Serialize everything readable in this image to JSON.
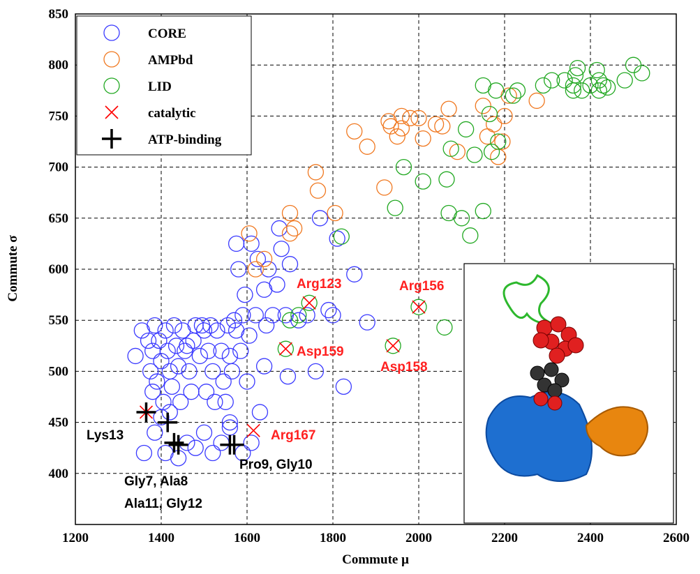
{
  "chart_data": {
    "type": "scatter",
    "xlabel": "Commute μ",
    "ylabel": "Commute σ",
    "xlim": [
      1200,
      2600
    ],
    "ylim": [
      350,
      850
    ],
    "xticks": [
      1200,
      1400,
      1600,
      1800,
      2000,
      2200,
      2400,
      2600
    ],
    "yticks": [
      400,
      450,
      500,
      550,
      600,
      650,
      700,
      750,
      800,
      850
    ],
    "grid": true,
    "legend": "upper left",
    "series": [
      {
        "name": "CORE",
        "color": "#3a3aff",
        "marker": "o",
        "x": [
          1340,
          1355,
          1370,
          1375,
          1380,
          1385,
          1390,
          1395,
          1400,
          1405,
          1410,
          1415,
          1420,
          1425,
          1430,
          1435,
          1440,
          1445,
          1450,
          1455,
          1460,
          1465,
          1470,
          1475,
          1480,
          1490,
          1495,
          1500,
          1505,
          1510,
          1515,
          1520,
          1525,
          1530,
          1540,
          1545,
          1550,
          1555,
          1560,
          1565,
          1570,
          1575,
          1575,
          1580,
          1585,
          1590,
          1595,
          1600,
          1605,
          1610,
          1620,
          1625,
          1630,
          1640,
          1645,
          1650,
          1660,
          1670,
          1675,
          1680,
          1690,
          1695,
          1700,
          1720,
          1740,
          1760,
          1770,
          1790,
          1800,
          1810,
          1825,
          1850,
          1880,
          1360,
          1385,
          1410,
          1440,
          1460,
          1480,
          1500,
          1520,
          1540,
          1560,
          1590,
          1610,
          1380,
          1400,
          1420,
          1640,
          1560
        ],
        "y": [
          515,
          540,
          530,
          500,
          520,
          545,
          490,
          530,
          510,
          470,
          540,
          520,
          500,
          485,
          545,
          525,
          505,
          470,
          540,
          520,
          525,
          500,
          480,
          530,
          545,
          515,
          545,
          540,
          480,
          520,
          545,
          500,
          470,
          540,
          520,
          490,
          470,
          545,
          515,
          500,
          550,
          625,
          540,
          600,
          520,
          555,
          575,
          490,
          535,
          625,
          555,
          610,
          460,
          505,
          545,
          600,
          555,
          585,
          640,
          620,
          555,
          495,
          605,
          550,
          555,
          500,
          650,
          560,
          555,
          630,
          485,
          595,
          548,
          420,
          440,
          420,
          415,
          430,
          425,
          440,
          420,
          430,
          445,
          420,
          430,
          480,
          455,
          460,
          580,
          450
        ]
      },
      {
        "name": "AMPbd",
        "color": "#f07820",
        "marker": "o",
        "x": [
          1605,
          1620,
          1640,
          1700,
          1710,
          1700,
          1760,
          1765,
          1805,
          1850,
          1880,
          1920,
          1935,
          1950,
          1960,
          1980,
          2000,
          2010,
          2040,
          2055,
          2070,
          2090,
          2150,
          2160,
          2175,
          2185,
          2195,
          2200,
          2210,
          2275,
          1930,
          1960
        ],
        "y": [
          635,
          600,
          610,
          635,
          640,
          655,
          695,
          677,
          655,
          735,
          720,
          680,
          740,
          730,
          750,
          748,
          748,
          728,
          742,
          740,
          757,
          715,
          760,
          730,
          742,
          710,
          725,
          750,
          770,
          765,
          745,
          738
        ]
      },
      {
        "name": "LID",
        "color": "#22a822",
        "marker": "o",
        "x": [
          1820,
          1700,
          1720,
          1745,
          1690,
          2000,
          2060,
          1940,
          1945,
          1965,
          2010,
          2065,
          2075,
          2070,
          2100,
          2110,
          2120,
          2130,
          2150,
          2150,
          2165,
          2170,
          2180,
          2185,
          2220,
          2230,
          2290,
          2310,
          2340,
          2360,
          2365,
          2370,
          2380,
          2400,
          2415,
          2420,
          2430,
          2440,
          2480,
          2500,
          2520,
          2360,
          2420
        ],
        "y": [
          632,
          550,
          555,
          567,
          522,
          563,
          543,
          525,
          660,
          700,
          686,
          688,
          718,
          655,
          650,
          737,
          633,
          712,
          657,
          780,
          752,
          715,
          775,
          725,
          770,
          775,
          780,
          785,
          785,
          780,
          790,
          797,
          775,
          780,
          795,
          775,
          780,
          778,
          785,
          800,
          792,
          775,
          785
        ]
      },
      {
        "name": "catalytic",
        "color": "#ff0000",
        "marker": "x",
        "x": [
          1365,
          1745,
          2000,
          1690,
          1940,
          1615
        ],
        "y": [
          460,
          567,
          563,
          522,
          525,
          442
        ]
      },
      {
        "name": "ATP-binding",
        "color": "#000000",
        "marker": "+",
        "x": [
          1365,
          1415,
          1430,
          1440,
          1560,
          1570
        ],
        "y": [
          460,
          450,
          430,
          428,
          428,
          428
        ]
      }
    ],
    "annotations": [
      {
        "text": "Arg123",
        "color": "#ff2020"
      },
      {
        "text": "Arg156",
        "color": "#ff2020"
      },
      {
        "text": "Asp159",
        "color": "#ff2020"
      },
      {
        "text": "Asp158",
        "color": "#ff2020"
      },
      {
        "text": "Arg167",
        "color": "#ff2020"
      },
      {
        "text": "Lys13",
        "color": "#000000"
      },
      {
        "text": "Pro9, Gly10",
        "color": "#000000"
      },
      {
        "text": "Gly7, Ala8",
        "color": "#000000"
      },
      {
        "text": "Ala11, Gly12",
        "color": "#000000"
      }
    ]
  }
}
